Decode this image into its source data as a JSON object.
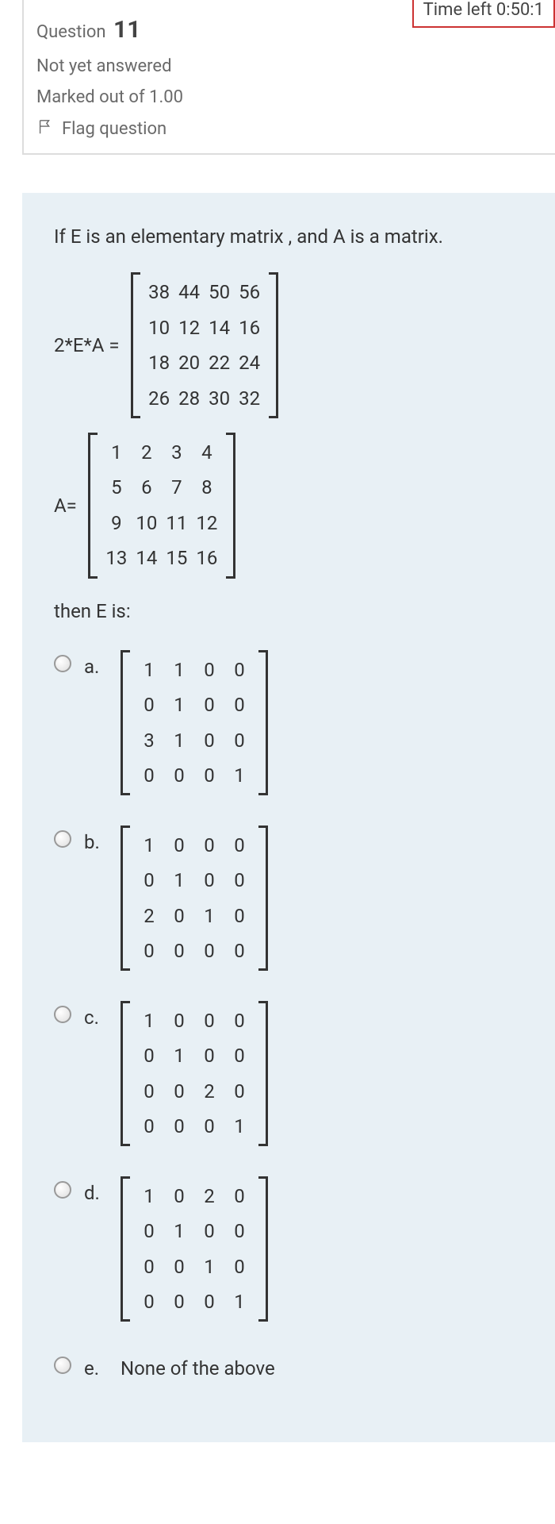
{
  "timer": {
    "fragment": "Time left 0:50:1"
  },
  "question": {
    "label": "Question",
    "number": "11",
    "status": "Not yet answered",
    "marked": "Marked out of 1.00",
    "flag": "Flag question"
  },
  "content": {
    "intro": "If E is an elementary matrix , and A is a matrix.",
    "eq1_lhs": "2*E*A =",
    "eq1_matrix": {
      "cols": 4,
      "cells": [
        "38",
        "44",
        "50",
        "56",
        "10",
        "12",
        "14",
        "16",
        "18",
        "20",
        "22",
        "24",
        "26",
        "28",
        "30",
        "32"
      ]
    },
    "eq2_lhs": "A=",
    "eq2_matrix": {
      "cols": 4,
      "cells": [
        "1",
        "2",
        "3",
        "4",
        "5",
        "6",
        "7",
        "8",
        "9",
        "10",
        "11",
        "12",
        "13",
        "14",
        "15",
        "16"
      ]
    },
    "then": "then E is:",
    "options": [
      {
        "label": "a.",
        "type": "matrix",
        "cols": 4,
        "cells": [
          "1",
          "1",
          "0",
          "0",
          "0",
          "1",
          "0",
          "0",
          "3",
          "1",
          "0",
          "0",
          "0",
          "0",
          "0",
          "1"
        ]
      },
      {
        "label": "b.",
        "type": "matrix",
        "cols": 4,
        "cells": [
          "1",
          "0",
          "0",
          "0",
          "0",
          "1",
          "0",
          "0",
          "2",
          "0",
          "1",
          "0",
          "0",
          "0",
          "0",
          "0"
        ]
      },
      {
        "label": "c.",
        "type": "matrix",
        "cols": 4,
        "cells": [
          "1",
          "0",
          "0",
          "0",
          "0",
          "1",
          "0",
          "0",
          "0",
          "0",
          "2",
          "0",
          "0",
          "0",
          "0",
          "1"
        ]
      },
      {
        "label": "d.",
        "type": "matrix",
        "cols": 4,
        "cells": [
          "1",
          "0",
          "2",
          "0",
          "0",
          "1",
          "0",
          "0",
          "0",
          "0",
          "1",
          "0",
          "0",
          "0",
          "0",
          "1"
        ]
      },
      {
        "label": "e.",
        "type": "text",
        "text": "None of the above"
      }
    ]
  },
  "style": {
    "content_bg": "#e8f0f5",
    "text_color": "#333333",
    "muted_color": "#6a6a6a",
    "border_color": "#dddddd",
    "timer_border": "#c33333"
  }
}
